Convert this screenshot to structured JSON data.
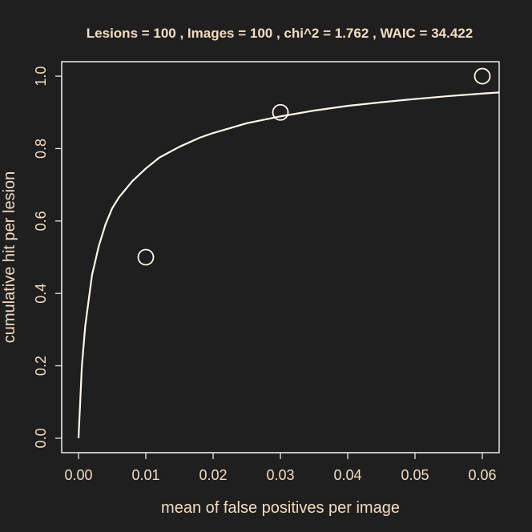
{
  "chart_data": {
    "type": "scatter",
    "title": "Lesions =  100 ,  Images =  100 , chi^2 = 1.762 , WAIC = 34.422",
    "xlabel": "mean of false positives per image",
    "ylabel": "cumulative hit per lesion",
    "xlim": [
      -0.0025,
      0.0625
    ],
    "ylim": [
      -0.04,
      1.04
    ],
    "x_ticks": [
      "0.00",
      "0.01",
      "0.02",
      "0.03",
      "0.04",
      "0.05",
      "0.06"
    ],
    "y_ticks": [
      "0.0",
      "0.2",
      "0.4",
      "0.6",
      "0.8",
      "1.0"
    ],
    "grid": false,
    "series": [
      {
        "kind": "points",
        "marker": "open-circle",
        "x": [
          0.01,
          0.03,
          0.06
        ],
        "y": [
          0.5,
          0.9,
          1.0
        ]
      },
      {
        "kind": "line",
        "x": [
          0.0,
          0.0005,
          0.001,
          0.002,
          0.003,
          0.004,
          0.005,
          0.006,
          0.008,
          0.01,
          0.012,
          0.015,
          0.018,
          0.02,
          0.025,
          0.03,
          0.035,
          0.04,
          0.045,
          0.05,
          0.055,
          0.06,
          0.0625
        ],
        "y": [
          0.0,
          0.2,
          0.31,
          0.45,
          0.53,
          0.59,
          0.635,
          0.665,
          0.71,
          0.745,
          0.775,
          0.805,
          0.83,
          0.843,
          0.87,
          0.889,
          0.905,
          0.918,
          0.928,
          0.937,
          0.945,
          0.952,
          0.955
        ]
      }
    ]
  },
  "colors": {
    "background": "#1f1f1f",
    "foreground": "#f4dcc0",
    "frame": "#e8e8e8",
    "curve": "#fff8ec"
  }
}
